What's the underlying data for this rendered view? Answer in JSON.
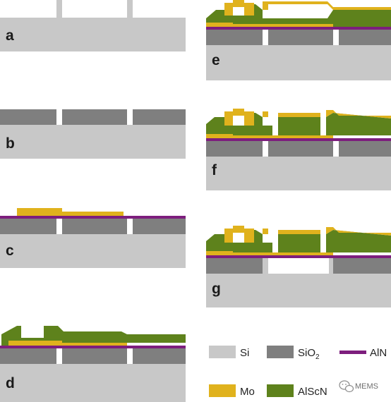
{
  "panels": {
    "a": "a",
    "b": "b",
    "c": "c",
    "d": "d",
    "e": "e",
    "f": "f",
    "g": "g"
  },
  "legend": {
    "si": "Si",
    "sio2_base": "SiO",
    "sio2_sub": "2",
    "aln": "AlN",
    "mo": "Mo",
    "alscn": "AlScN"
  },
  "watermark": "MEMS",
  "colors": {
    "si": "#c8c8c8",
    "sio2": "#7f7f7f",
    "aln": "#7d1e7d",
    "mo": "#e0b21d",
    "alscn": "#5e821c",
    "label": "#1a1a1a"
  }
}
